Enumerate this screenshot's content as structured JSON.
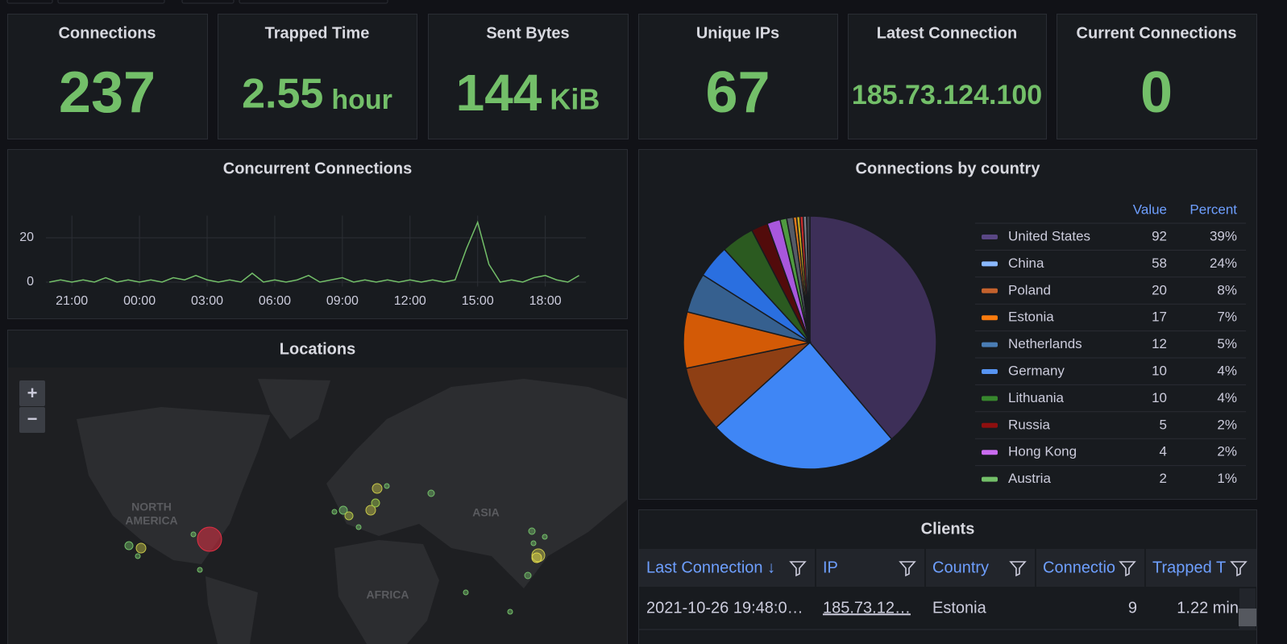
{
  "stats": [
    {
      "title": "Connections",
      "value": 237
    },
    {
      "title": "Trapped Time",
      "value": 2.55,
      "unit": "hour"
    },
    {
      "title": "Sent Bytes",
      "value": 144,
      "unit": "KiB"
    },
    {
      "title": "Unique IPs",
      "value": 67
    },
    {
      "title": "Latest Connection",
      "value": "185.73.124.100"
    },
    {
      "title": "Current Connections",
      "value": 0
    }
  ],
  "chart_data": [
    {
      "type": "line",
      "title": "Concurrent Connections",
      "color": "#73bf69",
      "grid": true,
      "x": [
        20,
        20.5,
        21,
        21.5,
        22,
        22.5,
        23,
        23.5,
        24,
        24.5,
        25,
        25.5,
        26,
        26.5,
        27,
        27.5,
        28,
        28.5,
        29,
        29.5,
        30,
        30.5,
        31,
        31.5,
        32,
        32.5,
        33,
        33.5,
        34,
        34.5,
        35,
        35.5,
        36,
        36.5,
        37,
        37.5,
        38,
        38.5,
        39,
        39.5,
        40,
        40.5,
        41,
        41.5,
        42,
        42.5,
        43,
        43.5
      ],
      "values": [
        0,
        1,
        0,
        1,
        0,
        2,
        0,
        1,
        0,
        1,
        0,
        2,
        1,
        3,
        1,
        0,
        1,
        0,
        4,
        0,
        1,
        0,
        1,
        3,
        0,
        1,
        2,
        0,
        1,
        0,
        1,
        0,
        1,
        0,
        1,
        0,
        1,
        15,
        27,
        8,
        0,
        1,
        0,
        2,
        3,
        1,
        0,
        3
      ],
      "xlim": [
        19.85,
        43.8
      ],
      "xticks": [
        {
          "value": 21,
          "label": "21:00"
        },
        {
          "value": 24,
          "label": "00:00"
        },
        {
          "value": 27,
          "label": "03:00"
        },
        {
          "value": 30,
          "label": "06:00"
        },
        {
          "value": 33,
          "label": "09:00"
        },
        {
          "value": 36,
          "label": "12:00"
        },
        {
          "value": 39,
          "label": "15:00"
        },
        {
          "value": 42,
          "label": "18:00"
        }
      ],
      "ylim": [
        -2,
        30
      ],
      "yticks": [
        0,
        20
      ]
    },
    {
      "type": "pie",
      "title": "Connections by country",
      "legend_headers": [
        "Value",
        "Percent"
      ],
      "categories": [
        "United States",
        "China",
        "Poland",
        "Estonia",
        "Netherlands",
        "Germany",
        "Lithuania",
        "Russia",
        "Hong Kong",
        "Austria",
        null,
        null,
        null,
        null,
        null,
        null
      ],
      "values": [
        92,
        58,
        20,
        17,
        12,
        10,
        10,
        5,
        4,
        2,
        2,
        1,
        1,
        1,
        1,
        1
      ],
      "percent_labels": [
        "39%",
        "24%",
        "8%",
        "7%",
        "5%",
        "4%",
        "4%",
        "2%",
        "2%",
        "1%",
        null,
        null,
        null,
        null,
        null,
        null
      ],
      "colors": [
        "#3d2f58",
        "#3f86f5",
        "#8e3f14",
        "#d35a06",
        "#36608f",
        "#2a6fe0",
        "#2b5a20",
        "#520b0b",
        "#a857dc",
        "#4f9a40",
        "#555a66",
        "#e07a1e",
        "#c9a81a",
        "#c42a2a",
        "#7a7f8a",
        "#3b3f48"
      ],
      "legend_colors": [
        "#5a4785",
        "#8ab8ff",
        "#c4622d",
        "#fa7b0e",
        "#4a7db5",
        "#5794f2",
        "#37872d",
        "#8e0f0f",
        "#ca6cf0",
        "#73bf69",
        null,
        null,
        null,
        null,
        null,
        null
      ]
    }
  ],
  "locations": {
    "title": "Locations",
    "labels": [
      "NORTH",
      "AMERICA",
      "ASIA",
      "AFRICA"
    ],
    "zoom_in": "+",
    "zoom_out": "−"
  },
  "clients": {
    "title": "Clients",
    "headers": [
      "Last Connection ↓",
      "IP",
      "Country",
      "Connectio",
      "Trapped T"
    ],
    "rows": [
      [
        "2021-10-26 19:48:0…",
        "185.73.12…",
        "Estonia",
        9,
        "1.22 min"
      ]
    ]
  }
}
